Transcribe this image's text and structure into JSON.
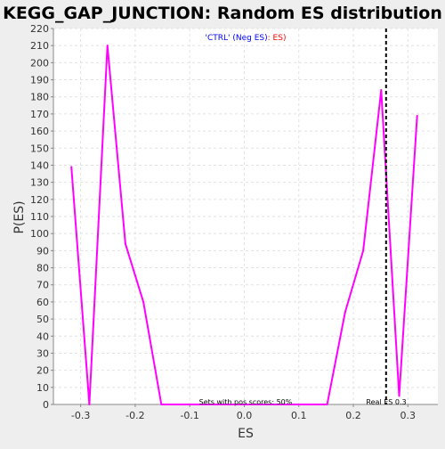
{
  "chart_data": {
    "type": "line",
    "title": "KEGG_GAP_JUNCTION: Random ES distribution",
    "xlabel": "ES",
    "ylabel": "P(ES)",
    "xlim": [
      -0.35,
      0.355
    ],
    "ylim": [
      0,
      220
    ],
    "x_ticks": [
      -0.3,
      -0.2,
      -0.1,
      0.0,
      0.1,
      0.2,
      0.3
    ],
    "x_tick_labels": [
      "-0.3",
      "-0.2",
      "-0.1",
      "0.0",
      "0.1",
      "0.2",
      "0.3"
    ],
    "y_ticks": [
      0,
      10,
      20,
      30,
      40,
      50,
      60,
      70,
      80,
      90,
      100,
      110,
      120,
      130,
      140,
      150,
      160,
      170,
      180,
      190,
      200,
      210,
      220
    ],
    "y_tick_labels": [
      "0",
      "10",
      "20",
      "30",
      "40",
      "50",
      "60",
      "70",
      "80",
      "90",
      "100",
      "110",
      "120",
      "130",
      "140",
      "150",
      "160",
      "170",
      "180",
      "190",
      "200",
      "210",
      "220"
    ],
    "grid": true,
    "series": [
      {
        "color": "#ff00ff",
        "points": [
          [
            -0.317,
            139
          ],
          [
            -0.284,
            0
          ],
          [
            -0.251,
            210
          ],
          [
            -0.218,
            94
          ],
          [
            -0.185,
            60
          ],
          [
            -0.152,
            0
          ],
          [
            0.152,
            0
          ],
          [
            0.185,
            54
          ],
          [
            0.218,
            90
          ],
          [
            0.251,
            184
          ],
          [
            0.284,
            5
          ],
          [
            0.317,
            169
          ]
        ]
      }
    ],
    "real_es": 0.26,
    "real_es_color": "#000000",
    "annotations": {
      "legend_part1": "'CTRL' (Neg ES)",
      "legend_part2": ": ES)",
      "legend_part1_color": "#0000ff",
      "legend_part2_color": "#ff0000",
      "sets_pos_scores": "Sets with pos scores: 50%",
      "real_es_label": "Real ES 0.3"
    }
  }
}
